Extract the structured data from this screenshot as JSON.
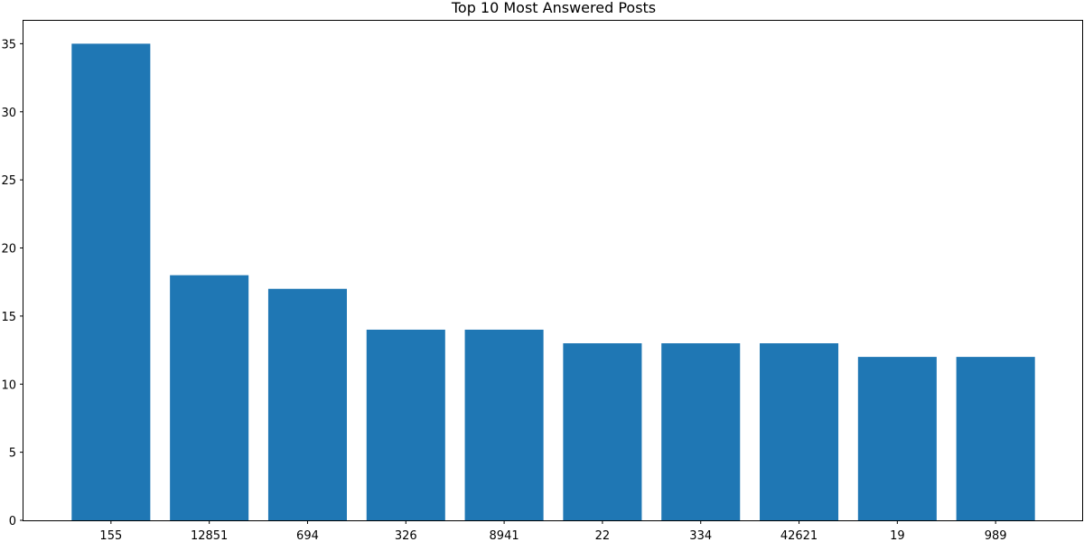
{
  "chart_data": {
    "type": "bar",
    "title": "Top 10 Most Answered Posts",
    "xlabel": "",
    "ylabel": "",
    "categories": [
      "155",
      "12851",
      "694",
      "326",
      "8941",
      "22",
      "334",
      "42621",
      "19",
      "989"
    ],
    "values": [
      35,
      18,
      17,
      14,
      14,
      13,
      13,
      13,
      12,
      12
    ],
    "ylim": [
      0,
      36.75
    ],
    "yticks": [
      0,
      5,
      10,
      15,
      20,
      25,
      30,
      35
    ],
    "grid": false,
    "legend": "none",
    "bar_color": "#1f77b4"
  }
}
